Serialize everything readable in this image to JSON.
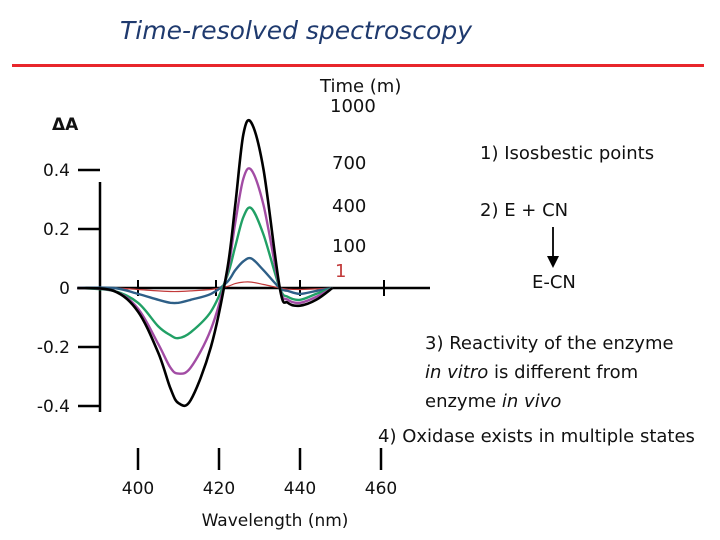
{
  "slide": {
    "title": "Time-resolved spectroscopy",
    "accent_color": "#e8262b",
    "title_color": "#1f3a6e"
  },
  "notes": {
    "time_header_line1": "Time (m)",
    "time_header_line2": "1000",
    "item1": "1)  Isosbestic points",
    "item2": "2)  E  +  CN",
    "item2_product": "E-CN",
    "item3_line1": "3) Reactivity of the enzyme",
    "item3_line2_italic": "in vitro",
    "item3_line2_rest": " is different from",
    "item3_line3_normal": "enzyme ",
    "item3_line3_italic": "in vivo",
    "item4": "4) Oxidase exists in multiple states"
  },
  "chart_data": {
    "type": "line",
    "title": "",
    "xlabel": "Wavelength (nm)",
    "ylabel": "ΔA",
    "xlim": [
      384,
      466
    ],
    "ylim": [
      -0.45,
      0.62
    ],
    "x_ticks": [
      400,
      420,
      440,
      460
    ],
    "y_ticks": [
      0.4,
      0.2,
      0,
      -0.2,
      -0.4
    ],
    "y_tick_labels": [
      "0.4",
      "0.2",
      "0",
      "-0.2",
      "-0.4"
    ],
    "grid": false,
    "series_labels_are_inline": true,
    "series": [
      {
        "name": "1000",
        "color": "#000000",
        "x": [
          385,
          394,
          400,
          405,
          408,
          410,
          413,
          418,
          422,
          424,
          426,
          428,
          431,
          435,
          437,
          440,
          444,
          448
        ],
        "y": [
          0.0,
          -0.01,
          -0.08,
          -0.22,
          -0.34,
          -0.39,
          -0.38,
          -0.2,
          0.06,
          0.28,
          0.52,
          0.56,
          0.4,
          0.0,
          -0.05,
          -0.06,
          -0.04,
          0.0
        ]
      },
      {
        "name": "700",
        "color": "#a24ca4",
        "x": [
          385,
          394,
          400,
          405,
          408,
          410,
          413,
          418,
          422,
          424,
          426,
          428,
          431,
          435,
          437,
          440,
          444,
          448
        ],
        "y": [
          0.0,
          -0.01,
          -0.07,
          -0.19,
          -0.27,
          -0.29,
          -0.27,
          -0.14,
          0.05,
          0.22,
          0.37,
          0.4,
          0.28,
          0.0,
          -0.04,
          -0.05,
          -0.03,
          0.0
        ]
      },
      {
        "name": "400",
        "color": "#21a065",
        "x": [
          385,
          394,
          400,
          405,
          408,
          410,
          413,
          418,
          422,
          424,
          426,
          428,
          431,
          435,
          437,
          440,
          444,
          448
        ],
        "y": [
          0.0,
          -0.01,
          -0.05,
          -0.13,
          -0.16,
          -0.17,
          -0.15,
          -0.08,
          0.04,
          0.14,
          0.24,
          0.27,
          0.18,
          0.0,
          -0.03,
          -0.04,
          -0.02,
          0.0
        ]
      },
      {
        "name": "100",
        "color": "#2e5f87",
        "x": [
          385,
          394,
          400,
          405,
          408,
          410,
          413,
          418,
          422,
          424,
          426,
          428,
          431,
          435,
          437,
          440,
          444,
          448
        ],
        "y": [
          0.0,
          0.0,
          -0.02,
          -0.04,
          -0.05,
          -0.05,
          -0.04,
          -0.02,
          0.02,
          0.06,
          0.09,
          0.1,
          0.06,
          0.0,
          -0.01,
          -0.02,
          -0.01,
          0.0
        ]
      },
      {
        "name": "1",
        "color": "#c23a3a",
        "x": [
          385,
          394,
          400,
          405,
          408,
          410,
          413,
          418,
          422,
          424,
          426,
          428,
          431,
          435,
          437,
          440,
          444,
          448
        ],
        "y": [
          0.0,
          0.0,
          -0.005,
          -0.01,
          -0.012,
          -0.012,
          -0.01,
          -0.005,
          0.005,
          0.015,
          0.02,
          0.02,
          0.012,
          0.0,
          -0.004,
          -0.005,
          -0.003,
          0.0
        ]
      }
    ]
  }
}
